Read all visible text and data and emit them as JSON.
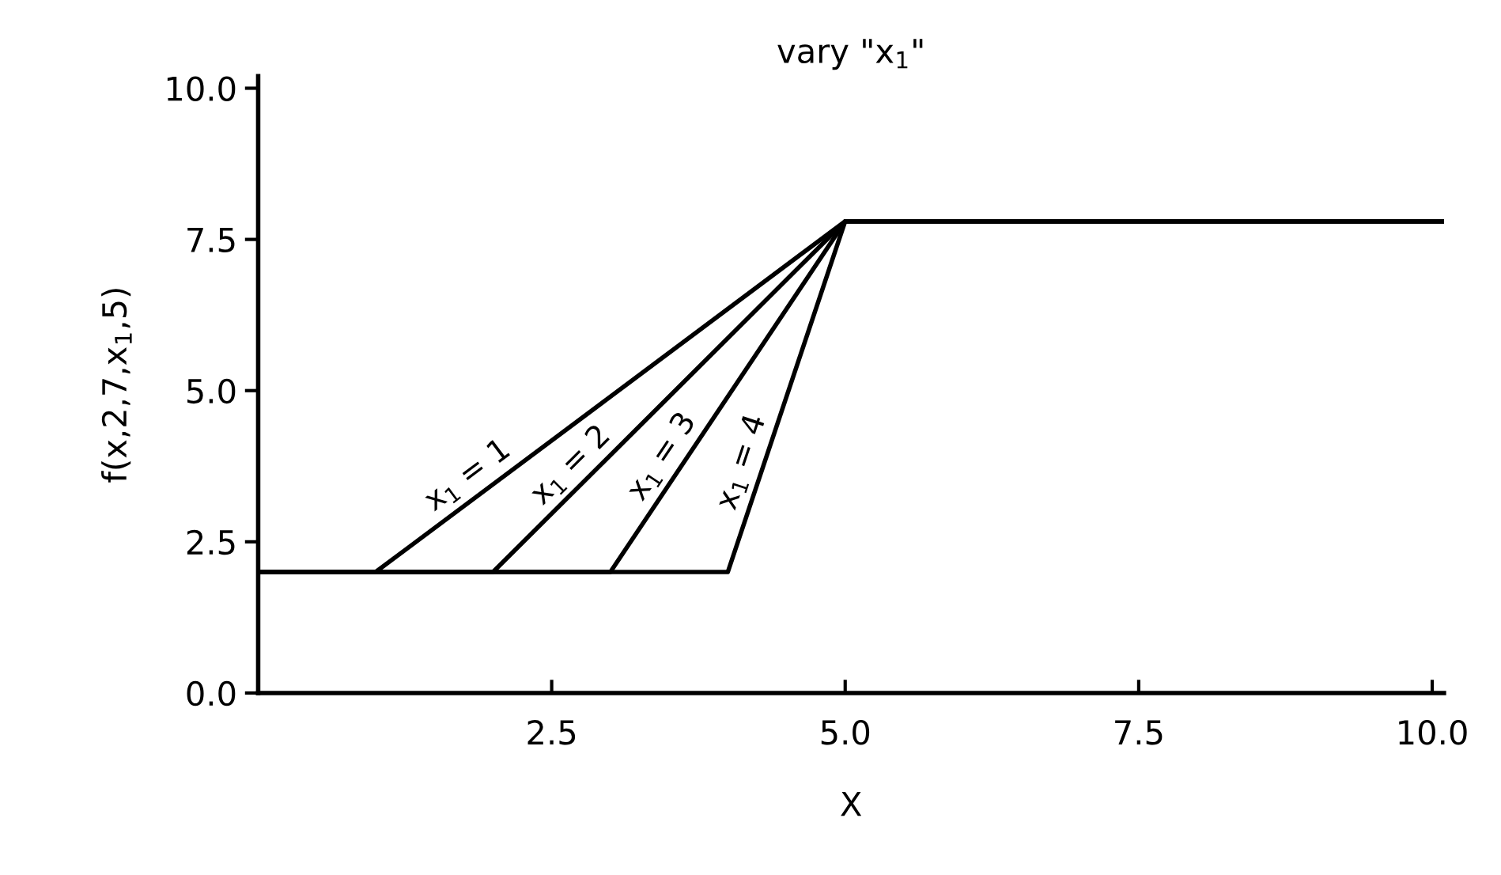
{
  "chart_data": {
    "type": "line",
    "title": "vary \"x$_{1}$\"",
    "xlabel": "X",
    "ylabel": "f(x,2,7,x$_{1}$,5)",
    "series": [
      {
        "color": "#000000",
        "x": [
          0,
          1,
          5,
          10.1
        ],
        "values": [
          2.0,
          2.0,
          7.8,
          7.8
        ]
      },
      {
        "color": "#000000",
        "x": [
          0,
          2,
          5,
          10.1
        ],
        "values": [
          2.0,
          2.0,
          7.8,
          7.8
        ]
      },
      {
        "color": "#000000",
        "x": [
          0,
          3,
          5,
          10.1
        ],
        "values": [
          2.0,
          2.0,
          7.8,
          7.8
        ]
      },
      {
        "color": "#000000",
        "x": [
          0,
          4,
          5,
          10.1
        ],
        "values": [
          2.0,
          2.0,
          7.8,
          7.8
        ]
      }
    ],
    "annotations": [
      {
        "text": "x$_{1}$ = 1",
        "x": 1.9,
        "y": 3.3
      },
      {
        "text": "x$_{1}$ = 2",
        "x": 2.8,
        "y": 3.5
      },
      {
        "text": "x$_{1}$ = 3",
        "x": 3.6,
        "y": 3.7
      },
      {
        "text": "x$_{1}$ = 4",
        "x": 4.3,
        "y": 3.7
      }
    ],
    "xlim": [
      0,
      10.1
    ],
    "ylim": [
      0,
      10.2
    ],
    "xticks": [
      {
        "value": 2.5,
        "label": "2.5"
      },
      {
        "value": 5.0,
        "label": "5.0"
      },
      {
        "value": 7.5,
        "label": "7.5"
      },
      {
        "value": 10.0,
        "label": "10.0"
      }
    ],
    "yticks": [
      {
        "value": 0,
        "label": "0.0"
      },
      {
        "value": 2.5,
        "label": "2.5"
      },
      {
        "value": 5.0,
        "label": "5.0"
      },
      {
        "value": 7.5,
        "label": "7.5"
      },
      {
        "value": 10.0,
        "label": "10.0"
      }
    ],
    "grid": false,
    "legend": false,
    "marker": "none",
    "line_style": "solid"
  }
}
